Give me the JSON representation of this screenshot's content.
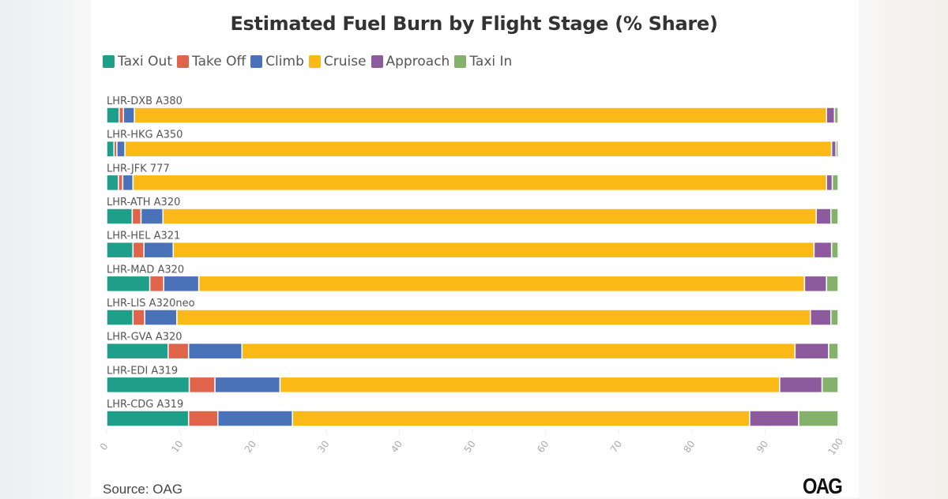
{
  "chart_data": {
    "type": "bar",
    "orientation": "horizontal",
    "stacked": true,
    "title": "Estimated Fuel Burn by Flight Stage (% Share)",
    "categories": [
      "LHR-DXB A380",
      "LHR-HKG A350",
      "LHR-JFK 777",
      "LHR-ATH A320",
      "LHR-HEL A321",
      "LHR-MAD A320",
      "LHR-LIS A320neo",
      "LHR-GVA A320",
      "LHR-EDI A319",
      "LHR-CDG A319"
    ],
    "series": [
      {
        "name": "Taxi Out",
        "color": "#1f9e89",
        "values": [
          1.7,
          1.0,
          1.6,
          3.5,
          3.6,
          5.9,
          3.6,
          8.4,
          11.3,
          11.2
        ]
      },
      {
        "name": "Take Off",
        "color": "#e0644a",
        "values": [
          0.6,
          0.4,
          0.6,
          1.2,
          1.5,
          1.9,
          1.6,
          2.8,
          3.5,
          4.0
        ]
      },
      {
        "name": "Climb",
        "color": "#4a72b8",
        "values": [
          1.5,
          1.1,
          1.4,
          3.0,
          4.0,
          4.8,
          4.4,
          7.3,
          8.9,
          10.2
        ]
      },
      {
        "name": "Cruise",
        "color": "#fbb917",
        "values": [
          94.6,
          96.6,
          94.8,
          89.3,
          87.6,
          82.8,
          86.6,
          75.6,
          68.3,
          62.5
        ]
      },
      {
        "name": "Approach",
        "color": "#8e5a9e",
        "values": [
          1.1,
          0.6,
          0.8,
          2.0,
          2.4,
          3.0,
          2.8,
          4.6,
          5.8,
          6.7
        ]
      },
      {
        "name": "Taxi In",
        "color": "#84b26a",
        "values": [
          0.5,
          0.3,
          0.8,
          1.0,
          0.9,
          1.6,
          1.0,
          1.3,
          2.2,
          5.4
        ]
      }
    ],
    "xlim": [
      0,
      100
    ],
    "xticks": [
      "0",
      "10",
      "20",
      "30",
      "40",
      "50",
      "60",
      "70",
      "80",
      "90",
      "100"
    ],
    "legend_position": "top-left",
    "grid": false
  },
  "footer": {
    "source": "Source: OAG",
    "logo": "OAG"
  }
}
